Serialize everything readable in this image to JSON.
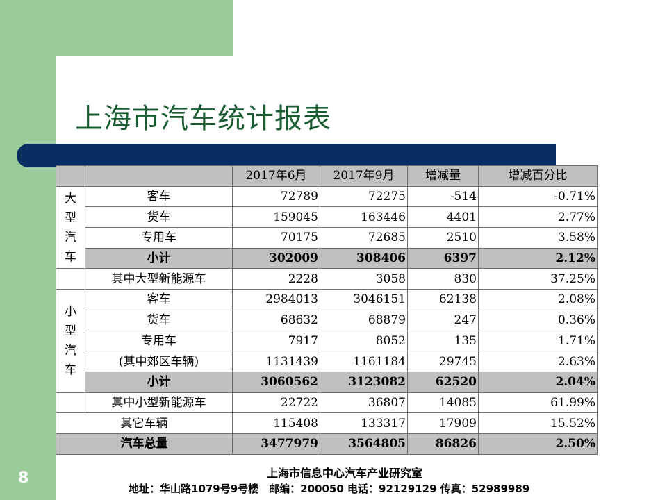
{
  "slide": {
    "title": "上海市汽车统计报表",
    "number": "8"
  },
  "table": {
    "headers": [
      "",
      "",
      "2017年6月",
      "2017年9月",
      "增减量",
      "增减百分比"
    ],
    "large_group_label": [
      "大",
      "型",
      "汽",
      "车"
    ],
    "small_group_label": [
      "小",
      "型",
      "汽",
      "车"
    ],
    "large_rows": [
      {
        "name": "客车",
        "jun": "72789",
        "sep": "72275",
        "change": "-514",
        "pct": "-0.71%"
      },
      {
        "name": "货车",
        "jun": "159045",
        "sep": "163446",
        "change": "4401",
        "pct": "2.77%"
      },
      {
        "name": "专用车",
        "jun": "70175",
        "sep": "72685",
        "change": "2510",
        "pct": "3.58%"
      }
    ],
    "large_subtotal": {
      "name": "小计",
      "jun": "302009",
      "sep": "308406",
      "change": "6397",
      "pct": "2.12%"
    },
    "large_nev": {
      "name": "其中大型新能源车",
      "jun": "2228",
      "sep": "3058",
      "change": "830",
      "pct": "37.25%"
    },
    "small_rows": [
      {
        "name": "客车",
        "jun": "2984013",
        "sep": "3046151",
        "change": "62138",
        "pct": "2.08%"
      },
      {
        "name": "货车",
        "jun": "68632",
        "sep": "68879",
        "change": "247",
        "pct": "0.36%"
      },
      {
        "name": "专用车",
        "jun": "7917",
        "sep": "8052",
        "change": "135",
        "pct": "1.71%"
      },
      {
        "name": "(其中郊区车辆)",
        "jun": "1131439",
        "sep": "1161184",
        "change": "29745",
        "pct": "2.63%"
      }
    ],
    "small_subtotal": {
      "name": "小计",
      "jun": "3060562",
      "sep": "3123082",
      "change": "62520",
      "pct": "2.04%"
    },
    "small_nev": {
      "name": "其中小型新能源车",
      "jun": "22722",
      "sep": "36807",
      "change": "14085",
      "pct": "61.99%"
    },
    "other": {
      "name": "其它车辆",
      "jun": "115408",
      "sep": "133317",
      "change": "17909",
      "pct": "15.52%"
    },
    "total": {
      "name": "汽车总量",
      "jun": "3477979",
      "sep": "3564805",
      "change": "86826",
      "pct": "2.50%"
    }
  },
  "footer": {
    "org": "上海市信息中心汽车产业研究室",
    "contact": "地址：华山路1079号9号楼　邮编：200050 电话：92129129 传真：52989989"
  },
  "colors": {
    "accent_green": "#99cc99",
    "title_green": "#1a5c32",
    "navy_bar": "#0a2d62",
    "header_gray": "#c0c0c0"
  }
}
